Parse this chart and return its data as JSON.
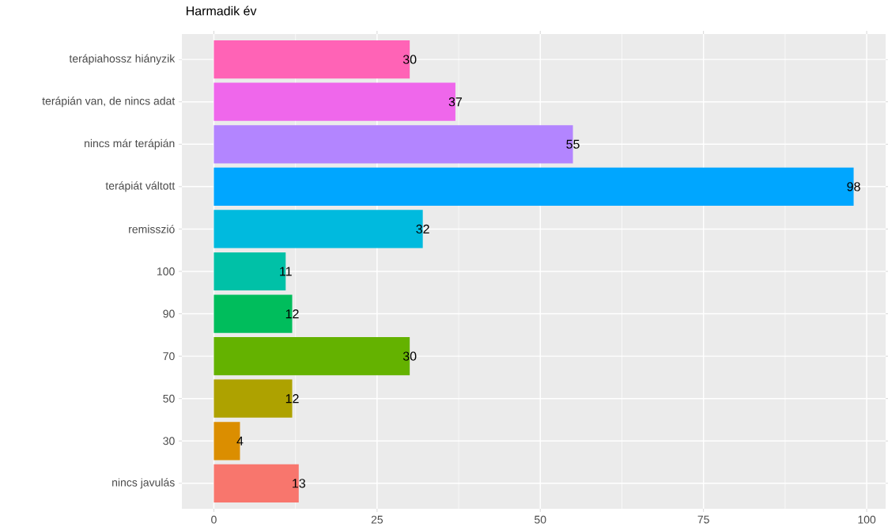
{
  "chart_data": {
    "type": "bar",
    "orientation": "horizontal",
    "title": "Harmadik év",
    "categories": [
      "terápiahossz hiányzik",
      "terápián van, de nincs adat",
      "nincs már terápián",
      "terápiát váltott",
      "remisszió",
      "100",
      "90",
      "70",
      "50",
      "30",
      "nincs javulás"
    ],
    "values": [
      30,
      37,
      55,
      98,
      32,
      11,
      12,
      30,
      12,
      4,
      13
    ],
    "colors": [
      "#FF63B6",
      "#EF67EB",
      "#B385FF",
      "#00A6FF",
      "#00BADE",
      "#00C1A7",
      "#00BD5C",
      "#64B200",
      "#AEA200",
      "#DB8E00",
      "#F8766D"
    ],
    "xlim": [
      -4.9,
      102.9
    ],
    "xticks": [
      0,
      25,
      50,
      75,
      100
    ],
    "grid": true,
    "data_labels": true
  }
}
